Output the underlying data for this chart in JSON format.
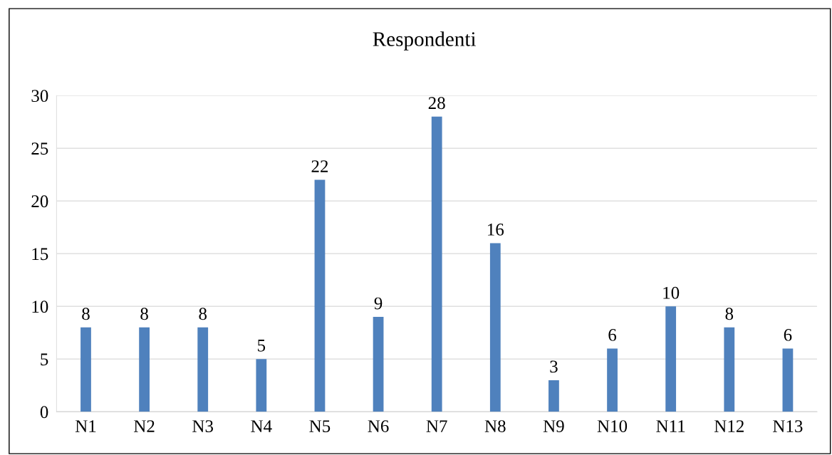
{
  "chart_data": {
    "type": "bar",
    "title": "Respondenti",
    "categories": [
      "N1",
      "N2",
      "N3",
      "N4",
      "N5",
      "N6",
      "N7",
      "N8",
      "N9",
      "N10",
      "N11",
      "N12",
      "N13"
    ],
    "values": [
      8,
      8,
      8,
      5,
      22,
      9,
      28,
      16,
      3,
      6,
      10,
      8,
      6
    ],
    "color": "#4f81bd",
    "ylim": [
      0,
      30
    ],
    "yticks": [
      0,
      5,
      10,
      15,
      20,
      25,
      30
    ],
    "grid": "y",
    "data_labels": true,
    "legend": false
  }
}
